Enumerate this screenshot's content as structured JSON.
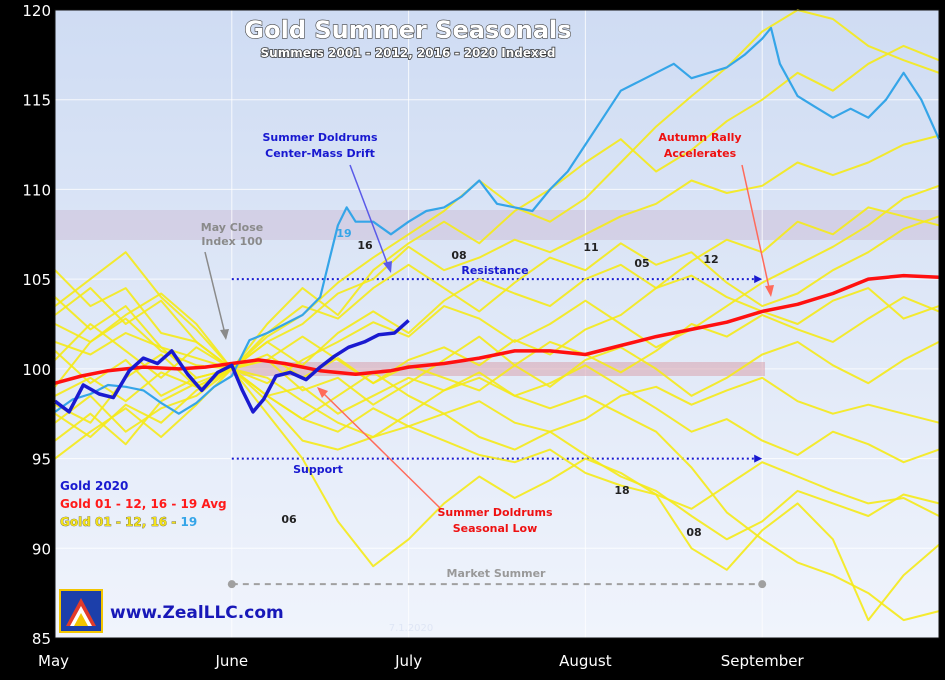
{
  "chart_data": {
    "type": "line",
    "title": "Gold Summer Seasonals",
    "subtitle": "Summers 2001 - 2012, 2016 - 2020 Indexed",
    "ylim": [
      85,
      120
    ],
    "yticks": [
      "120",
      "115",
      "110",
      "105",
      "100",
      "95",
      "90",
      "85"
    ],
    "xlim": [
      0,
      5
    ],
    "xticks": [
      {
        "label": "May",
        "x": 0
      },
      {
        "label": "June",
        "x": 1
      },
      {
        "label": "July",
        "x": 2
      },
      {
        "label": "August",
        "x": 3
      },
      {
        "label": "September",
        "x": 4
      }
    ],
    "reference_bands": [
      {
        "label": "Resistance",
        "y": 105,
        "x_start": 1.0,
        "x_end": 4.0
      },
      {
        "label": "Support",
        "y": 95,
        "x_start": 1.0,
        "x_end": 4.0
      },
      {
        "label": "Market Summer",
        "y": 88,
        "x_start": 1.0,
        "x_end": 4.0
      }
    ],
    "annotations": [
      {
        "text": "May Close",
        "text2": "Index 100"
      },
      {
        "text": "Summer Doldrums",
        "text2": "Center-Mass Drift"
      },
      {
        "text": "Autumn Rally",
        "text2": "Accelerates"
      },
      {
        "text": "Summer Doldrums",
        "text2": "Seasonal Low"
      }
    ],
    "date_label": "7.1.2020",
    "year_labels": [
      "19",
      "16",
      "08",
      "11",
      "05",
      "12",
      "18",
      "08",
      "06"
    ],
    "legend": [
      {
        "label": "Gold 2020",
        "color": "#1a1ad0"
      },
      {
        "label": "Gold 01 - 12, 16 - 19 Avg",
        "color": "#ff1a1a"
      },
      {
        "label": "Gold 01 - 12, 16 - ",
        "suffix": "19",
        "color": "#f4e21a",
        "suffix_color": "#35a5e8"
      }
    ],
    "watermark": "www.ZealLLC.com",
    "series": [
      {
        "name": "Gold 01 - 12, 16 - 19 Avg",
        "color": "#ff1010",
        "x": [
          0,
          0.15,
          0.3,
          0.5,
          0.7,
          0.85,
          1.0,
          1.15,
          1.3,
          1.5,
          1.7,
          1.9,
          2.0,
          2.2,
          2.4,
          2.6,
          2.8,
          3.0,
          3.2,
          3.4,
          3.6,
          3.8,
          4.0,
          4.2,
          4.4,
          4.6,
          4.8,
          5.0
        ],
        "y": [
          99.2,
          99.6,
          99.9,
          100.1,
          100.0,
          100.1,
          100.3,
          100.5,
          100.3,
          99.9,
          99.7,
          99.9,
          100.1,
          100.3,
          100.6,
          101.0,
          101.0,
          100.8,
          101.3,
          101.8,
          102.2,
          102.6,
          103.2,
          103.6,
          104.2,
          105.0,
          105.2,
          105.1
        ]
      },
      {
        "name": "Gold 2020",
        "color": "#1a1ad0",
        "x": [
          0,
          0.08,
          0.16,
          0.25,
          0.33,
          0.42,
          0.5,
          0.58,
          0.66,
          0.75,
          0.83,
          0.92,
          1.0,
          1.06,
          1.12,
          1.18,
          1.25,
          1.33,
          1.42,
          1.5,
          1.58,
          1.66,
          1.75,
          1.83,
          1.92,
          2.0
        ],
        "y": [
          98.2,
          97.6,
          99.1,
          98.6,
          98.4,
          99.9,
          100.6,
          100.3,
          101.0,
          99.7,
          98.8,
          99.8,
          100.2,
          98.8,
          97.6,
          98.3,
          99.6,
          99.8,
          99.4,
          100.1,
          100.7,
          101.2,
          101.5,
          101.9,
          102.0,
          102.7
        ]
      },
      {
        "name": "19",
        "color": "#35a5e8",
        "x": [
          0,
          0.1,
          0.2,
          0.3,
          0.4,
          0.5,
          0.6,
          0.7,
          0.8,
          0.9,
          1.0,
          1.1,
          1.2,
          1.3,
          1.4,
          1.5,
          1.55,
          1.6,
          1.65,
          1.7,
          1.8,
          1.9,
          2.0,
          2.1,
          2.2,
          2.3,
          2.4,
          2.5,
          2.6,
          2.7,
          2.8,
          2.9,
          3.0,
          3.1,
          3.2,
          3.3,
          3.4,
          3.5,
          3.6,
          3.7,
          3.8,
          3.9,
          4.0,
          4.05,
          4.1,
          4.2,
          4.3,
          4.4,
          4.5,
          4.6,
          4.7,
          4.8,
          4.9,
          5.0
        ],
        "y": [
          97.6,
          98.3,
          98.6,
          99.1,
          99.0,
          98.8,
          98.1,
          97.5,
          98.1,
          99.0,
          99.6,
          101.6,
          102.0,
          102.5,
          103.0,
          104.0,
          106.0,
          108.0,
          109.0,
          108.2,
          108.2,
          107.5,
          108.2,
          108.8,
          109.0,
          109.6,
          110.5,
          109.2,
          109.0,
          108.8,
          110.0,
          111.0,
          112.5,
          114.0,
          115.5,
          116.0,
          116.5,
          117.0,
          116.2,
          116.5,
          116.8,
          117.5,
          118.4,
          119.0,
          117.0,
          115.2,
          114.6,
          114.0,
          114.5,
          114.0,
          115.0,
          116.5,
          115.0,
          112.8
        ]
      },
      {
        "name": "yellow-01",
        "color": "#f5ea18",
        "x": [
          0,
          0.2,
          0.4,
          0.6,
          0.8,
          1.0,
          1.2,
          1.4,
          1.6,
          1.8,
          2.0,
          2.2,
          2.4,
          2.6,
          2.8,
          3.0,
          3.2,
          3.4,
          3.6,
          3.8,
          4.0,
          4.2,
          4.4,
          4.6,
          4.8,
          5.0
        ],
        "y": [
          101.5,
          100.8,
          102.0,
          101.2,
          100.6,
          100.0,
          98.5,
          97.2,
          96.5,
          97.8,
          96.8,
          97.5,
          98.2,
          97.0,
          96.5,
          97.2,
          98.5,
          99.0,
          98.0,
          98.8,
          99.5,
          98.2,
          97.5,
          98.0,
          97.5,
          97.0
        ]
      },
      {
        "name": "yellow-02",
        "color": "#f5ea18",
        "x": [
          0,
          0.2,
          0.4,
          0.6,
          0.8,
          1.0,
          1.2,
          1.4,
          1.6,
          1.8,
          2.0,
          2.2,
          2.4,
          2.6,
          2.8,
          3.0,
          3.2,
          3.4,
          3.6,
          3.8,
          4.0,
          4.2,
          4.4,
          4.6,
          4.8,
          5.0
        ],
        "y": [
          103.0,
          104.5,
          102.5,
          103.8,
          101.5,
          100.0,
          101.5,
          102.5,
          104.2,
          105.0,
          106.8,
          105.5,
          106.2,
          107.2,
          106.5,
          107.5,
          108.5,
          109.2,
          110.5,
          109.8,
          110.2,
          111.5,
          110.8,
          111.5,
          112.5,
          113.0
        ]
      },
      {
        "name": "yellow-03",
        "color": "#f5ea18",
        "x": [
          0,
          0.2,
          0.4,
          0.6,
          0.8,
          1.0,
          1.2,
          1.4,
          1.6,
          1.8,
          2.0,
          2.2,
          2.4,
          2.6,
          2.8,
          3.0,
          3.2,
          3.4,
          3.6,
          3.8,
          4.0,
          4.2,
          4.4,
          4.6,
          4.8,
          5.0
        ],
        "y": [
          97.5,
          96.2,
          98.0,
          97.0,
          98.8,
          100.0,
          98.2,
          96.0,
          95.5,
          96.2,
          96.8,
          96.0,
          95.2,
          94.8,
          95.5,
          94.2,
          93.5,
          93.0,
          92.2,
          93.5,
          94.8,
          94.0,
          93.2,
          92.5,
          92.8,
          91.8
        ]
      },
      {
        "name": "yellow-04",
        "color": "#f5ea18",
        "x": [
          0,
          0.2,
          0.4,
          0.6,
          0.8,
          1.0,
          1.2,
          1.4,
          1.6,
          1.8,
          2.0,
          2.2,
          2.4,
          2.6,
          2.8,
          3.0,
          3.2,
          3.4,
          3.6,
          3.8,
          4.0,
          4.2,
          4.4,
          4.6,
          4.8,
          5.0
        ],
        "y": [
          104.0,
          102.2,
          103.5,
          101.2,
          99.5,
          100.0,
          102.0,
          103.5,
          102.8,
          104.5,
          105.8,
          104.5,
          103.2,
          104.8,
          106.2,
          105.5,
          107.0,
          105.8,
          106.5,
          104.8,
          103.5,
          104.2,
          105.5,
          106.5,
          107.8,
          108.5
        ]
      },
      {
        "name": "yellow-05",
        "color": "#f5ea18",
        "x": [
          0,
          0.2,
          0.4,
          0.6,
          0.8,
          1.0,
          1.2,
          1.4,
          1.6,
          1.8,
          2.0,
          2.2,
          2.4,
          2.6,
          2.8,
          3.0,
          3.2,
          3.4,
          3.6,
          3.8,
          4.0,
          4.2,
          4.4,
          4.6,
          4.8,
          5.0
        ],
        "y": [
          98.5,
          99.5,
          98.2,
          99.8,
          99.0,
          100.0,
          100.8,
          99.5,
          100.6,
          99.2,
          100.5,
          101.2,
          100.2,
          101.6,
          100.8,
          102.2,
          103.0,
          104.5,
          105.2,
          104.0,
          103.2,
          102.5,
          103.8,
          104.5,
          102.8,
          103.5
        ]
      },
      {
        "name": "yellow-06",
        "color": "#f5ea18",
        "x": [
          0,
          0.2,
          0.4,
          0.6,
          0.8,
          1.0,
          1.2,
          1.4,
          1.6,
          1.8,
          2.0,
          2.2,
          2.4,
          2.6,
          2.8,
          3.0,
          3.2,
          3.4,
          3.6,
          3.8,
          4.0,
          4.2,
          4.4,
          4.6,
          4.8,
          5.0
        ],
        "y": [
          96.0,
          97.5,
          95.8,
          98.2,
          99.2,
          100.0,
          98.5,
          99.0,
          97.5,
          98.5,
          99.5,
          98.8,
          99.8,
          98.5,
          99.2,
          100.2,
          99.0,
          97.8,
          96.5,
          97.2,
          96.0,
          95.2,
          96.5,
          95.8,
          94.8,
          95.5
        ]
      },
      {
        "name": "yellow-07",
        "color": "#f5ea18",
        "x": [
          0,
          0.2,
          0.4,
          0.6,
          0.8,
          1.0,
          1.2,
          1.4,
          1.6,
          1.8,
          2.0,
          2.2,
          2.4,
          2.6,
          2.8,
          3.0,
          3.2,
          3.4,
          3.6,
          3.8,
          4.0,
          4.2,
          4.4,
          4.6,
          4.8,
          5.0
        ],
        "y": [
          100.5,
          102.5,
          101.0,
          99.5,
          101.2,
          100.0,
          99.2,
          100.5,
          101.5,
          102.6,
          101.8,
          103.5,
          102.8,
          101.5,
          102.5,
          103.8,
          102.5,
          101.2,
          102.2,
          103.5,
          104.8,
          105.8,
          106.8,
          108.0,
          109.5,
          110.2
        ]
      },
      {
        "name": "yellow-08",
        "color": "#f5ea18",
        "x": [
          0,
          0.2,
          0.4,
          0.6,
          0.8,
          1.0,
          1.2,
          1.4,
          1.6,
          1.8,
          2.0,
          2.2,
          2.4,
          2.6,
          2.8,
          3.0,
          3.2,
          3.4,
          3.6,
          3.8,
          4.0,
          4.2,
          4.4,
          4.6,
          4.8,
          5.0
        ],
        "y": [
          105.5,
          103.5,
          104.5,
          102.0,
          101.5,
          100.0,
          100.5,
          98.8,
          99.5,
          98.0,
          99.2,
          100.5,
          101.8,
          100.2,
          99.0,
          100.5,
          101.2,
          100.0,
          98.5,
          99.5,
          100.8,
          101.5,
          100.2,
          99.2,
          100.5,
          101.5
        ]
      },
      {
        "name": "yellow-09",
        "color": "#f5ea18",
        "x": [
          0,
          0.2,
          0.4,
          0.6,
          0.8,
          1.0,
          1.2,
          1.4,
          1.6,
          1.8,
          2.0,
          2.2,
          2.4,
          2.6,
          2.8,
          3.0,
          3.2,
          3.4,
          3.6,
          3.8,
          4.0,
          4.2,
          4.4,
          4.6,
          4.8,
          5.0
        ],
        "y": [
          102.5,
          101.5,
          103.0,
          104.2,
          102.5,
          100.0,
          101.8,
          103.0,
          104.8,
          106.2,
          107.5,
          108.8,
          110.5,
          109.0,
          108.2,
          109.5,
          111.5,
          113.5,
          115.2,
          116.8,
          118.8,
          120.0,
          119.5,
          118.0,
          117.2,
          116.5
        ]
      },
      {
        "name": "yellow-10",
        "color": "#f5ea18",
        "x": [
          0,
          0.2,
          0.4,
          0.6,
          0.8,
          1.0,
          1.2,
          1.4,
          1.6,
          1.8,
          2.0,
          2.2,
          2.4,
          2.6,
          2.8,
          3.0,
          3.2,
          3.4,
          3.6,
          3.8,
          4.0,
          4.2,
          4.4,
          4.6,
          4.8,
          5.0
        ],
        "y": [
          97.0,
          98.5,
          96.5,
          97.8,
          98.5,
          100.0,
          99.5,
          98.2,
          97.0,
          96.2,
          97.5,
          98.8,
          99.5,
          98.5,
          97.8,
          98.5,
          97.5,
          96.5,
          94.5,
          92.0,
          90.5,
          89.2,
          88.5,
          87.5,
          86.0,
          86.5
        ]
      },
      {
        "name": "yellow-11",
        "color": "#f5ea18",
        "x": [
          0,
          0.2,
          0.4,
          0.6,
          0.8,
          1.0,
          1.2,
          1.4,
          1.6,
          1.8,
          2.0,
          2.2,
          2.4,
          2.6,
          2.8,
          3.0,
          3.2,
          3.4,
          3.6,
          3.8,
          4.0,
          4.2,
          4.4,
          4.6,
          4.8,
          5.0
        ],
        "y": [
          101.0,
          99.2,
          100.5,
          98.5,
          99.5,
          100.0,
          98.5,
          97.2,
          98.5,
          99.8,
          98.5,
          97.5,
          96.2,
          95.5,
          96.5,
          95.2,
          94.0,
          93.2,
          91.8,
          90.5,
          91.5,
          93.2,
          92.5,
          91.8,
          93.0,
          92.5
        ]
      },
      {
        "name": "yellow-12",
        "color": "#f5ea18",
        "x": [
          0,
          0.2,
          0.4,
          0.6,
          0.8,
          1.0,
          1.2,
          1.4,
          1.6,
          1.8,
          2.0,
          2.2,
          2.4,
          2.6,
          2.8,
          3.0,
          3.2,
          3.4,
          3.6,
          3.8,
          4.0,
          4.2,
          4.4,
          4.6,
          4.8,
          5.0
        ],
        "y": [
          99.0,
          101.5,
          102.8,
          101.0,
          100.2,
          100.0,
          101.5,
          100.2,
          102.0,
          103.2,
          102.0,
          103.8,
          105.0,
          104.2,
          103.5,
          105.0,
          105.8,
          104.5,
          106.0,
          107.2,
          106.5,
          108.2,
          107.5,
          109.0,
          108.5,
          108.0
        ]
      },
      {
        "name": "yellow-13",
        "color": "#f5ea18",
        "x": [
          0,
          0.2,
          0.4,
          0.6,
          0.8,
          1.0,
          1.2,
          1.4,
          1.6,
          1.8,
          2.0,
          2.2,
          2.4,
          2.6,
          2.8,
          3.0,
          3.2,
          3.4,
          3.6,
          3.8,
          4.0,
          4.2,
          4.4,
          4.6,
          4.8,
          5.0
        ],
        "y": [
          95.0,
          96.5,
          97.8,
          96.2,
          98.0,
          100.0,
          97.5,
          95.0,
          91.5,
          89.0,
          90.5,
          92.5,
          94.0,
          92.8,
          93.8,
          95.0,
          94.2,
          93.0,
          90.0,
          88.8,
          91.0,
          92.5,
          90.5,
          86.0,
          88.5,
          90.2
        ]
      },
      {
        "name": "yellow-14",
        "color": "#f5ea18",
        "x": [
          0,
          0.2,
          0.4,
          0.6,
          0.8,
          1.0,
          1.2,
          1.4,
          1.6,
          1.8,
          2.0,
          2.2,
          2.4,
          2.6,
          2.8,
          3.0,
          3.2,
          3.4,
          3.6,
          3.8,
          4.0,
          4.2,
          4.4,
          4.6,
          4.8,
          5.0
        ],
        "y": [
          103.5,
          105.0,
          106.5,
          104.0,
          102.2,
          100.0,
          102.5,
          104.5,
          103.0,
          105.5,
          107.0,
          108.2,
          107.0,
          108.8,
          110.0,
          111.5,
          112.8,
          111.0,
          112.2,
          113.8,
          115.0,
          116.5,
          115.5,
          117.0,
          118.0,
          117.2
        ]
      },
      {
        "name": "yellow-15",
        "color": "#f5ea18",
        "x": [
          0,
          0.2,
          0.4,
          0.6,
          0.8,
          1.0,
          1.2,
          1.4,
          1.6,
          1.8,
          2.0,
          2.2,
          2.4,
          2.6,
          2.8,
          3.0,
          3.2,
          3.4,
          3.6,
          3.8,
          4.0,
          4.2,
          4.4,
          4.6,
          4.8,
          5.0
        ],
        "y": [
          98.0,
          97.0,
          99.5,
          100.8,
          99.0,
          100.0,
          100.5,
          101.8,
          100.5,
          99.2,
          100.2,
          99.5,
          98.8,
          100.2,
          101.5,
          100.8,
          99.8,
          101.0,
          102.5,
          101.8,
          103.0,
          102.2,
          101.5,
          102.8,
          104.0,
          103.2
        ]
      }
    ]
  }
}
